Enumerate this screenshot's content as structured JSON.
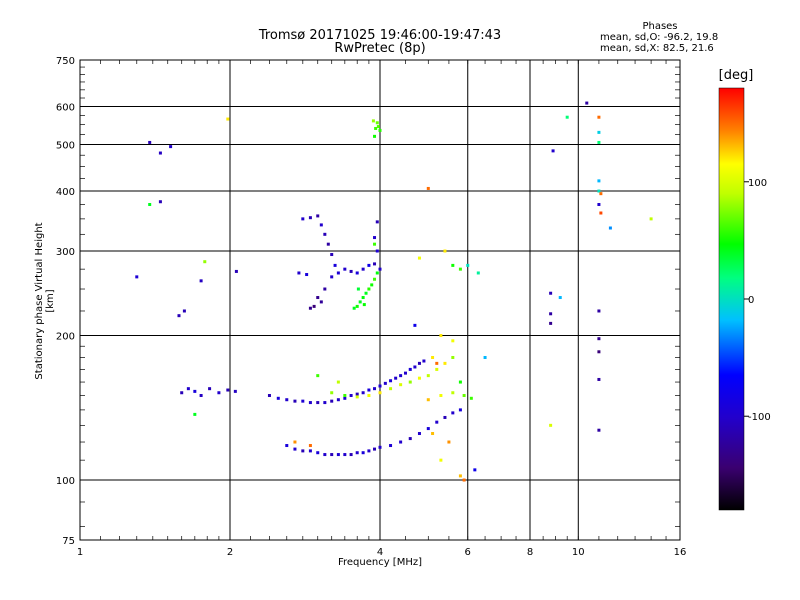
{
  "chart_data": {
    "type": "scatter",
    "title": "Tromsø 20171025 19:46:00-19:47:43",
    "subtitle": "RwPretec (8p)",
    "xlabel": "Frequency [MHz]",
    "ylabel": "Stationary phase Virtual Height [km]",
    "xscale": "log",
    "yscale": "log",
    "xlim": [
      1,
      16
    ],
    "ylim": [
      75,
      750
    ],
    "xticks": [
      "1",
      "2",
      "4",
      "6",
      "8",
      "10",
      "16"
    ],
    "yticks": [
      "75",
      "100",
      "200",
      "300",
      "400",
      "500",
      "600",
      "750"
    ],
    "grid": true,
    "stats": {
      "heading": "Phases",
      "line_o": "mean, sd,O: -96.2, 19.8",
      "line_x": "mean, sd,X: 82.5, 21.6"
    },
    "colorbar": {
      "label": "[deg]",
      "min": -180,
      "max": 180,
      "ticks": [
        "100",
        "0",
        "-100"
      ],
      "tick_values": [
        100,
        0,
        -100
      ]
    },
    "points": [
      [
        1.3,
        265,
        -95
      ],
      [
        1.38,
        505,
        -110
      ],
      [
        1.45,
        480,
        -105
      ],
      [
        1.52,
        495,
        -100
      ],
      [
        1.38,
        375,
        40
      ],
      [
        1.45,
        380,
        -110
      ],
      [
        1.58,
        220,
        -110
      ],
      [
        1.62,
        225,
        -110
      ],
      [
        1.75,
        260,
        -105
      ],
      [
        1.78,
        285,
        80
      ],
      [
        1.98,
        565,
        120
      ],
      [
        2.06,
        272,
        -110
      ],
      [
        1.6,
        152,
        -110
      ],
      [
        1.65,
        155,
        -100
      ],
      [
        1.7,
        153,
        -90
      ],
      [
        1.75,
        150,
        -105
      ],
      [
        1.82,
        155,
        -110
      ],
      [
        1.9,
        152,
        -100
      ],
      [
        1.98,
        154,
        -110
      ],
      [
        2.05,
        153,
        -105
      ],
      [
        1.7,
        137,
        40
      ],
      [
        2.4,
        150,
        -110
      ],
      [
        2.5,
        148,
        -90
      ],
      [
        2.6,
        147,
        -100
      ],
      [
        2.7,
        146,
        -110
      ],
      [
        2.8,
        146,
        -95
      ],
      [
        2.9,
        145,
        -100
      ],
      [
        3.0,
        145,
        -110
      ],
      [
        3.1,
        145,
        -100
      ],
      [
        3.2,
        146,
        -110
      ],
      [
        3.3,
        147,
        -100
      ],
      [
        3.4,
        148,
        -95
      ],
      [
        3.5,
        150,
        -100
      ],
      [
        3.6,
        151,
        -110
      ],
      [
        3.7,
        152,
        -100
      ],
      [
        3.8,
        154,
        -90
      ],
      [
        3.9,
        155,
        -100
      ],
      [
        4.0,
        157,
        -95
      ],
      [
        4.1,
        159,
        -100
      ],
      [
        4.2,
        161,
        -90
      ],
      [
        4.3,
        163,
        -100
      ],
      [
        4.4,
        165,
        -95
      ],
      [
        4.5,
        167,
        -100
      ],
      [
        4.6,
        170,
        -90
      ],
      [
        4.7,
        172,
        -100
      ],
      [
        4.8,
        175,
        -110
      ],
      [
        4.9,
        177,
        -100
      ],
      [
        3.2,
        152,
        80
      ],
      [
        3.4,
        150,
        60
      ],
      [
        3.6,
        149,
        100
      ],
      [
        3.8,
        150,
        110
      ],
      [
        4.0,
        152,
        120
      ],
      [
        4.2,
        155,
        90
      ],
      [
        4.4,
        158,
        100
      ],
      [
        4.6,
        160,
        80
      ],
      [
        4.8,
        163,
        110
      ],
      [
        5.0,
        165,
        90
      ],
      [
        5.2,
        170,
        100
      ],
      [
        5.4,
        175,
        120
      ],
      [
        5.6,
        180,
        80
      ],
      [
        5.0,
        147,
        130
      ],
      [
        5.3,
        150,
        110
      ],
      [
        5.6,
        152,
        90
      ],
      [
        5.9,
        150,
        70
      ],
      [
        6.1,
        148,
        60
      ],
      [
        5.8,
        160,
        50
      ],
      [
        3.0,
        165,
        60
      ],
      [
        3.3,
        160,
        90
      ],
      [
        2.6,
        118,
        -90
      ],
      [
        2.7,
        116,
        -100
      ],
      [
        2.8,
        115,
        -110
      ],
      [
        2.9,
        115,
        -100
      ],
      [
        3.0,
        114,
        -90
      ],
      [
        3.1,
        113,
        -100
      ],
      [
        3.2,
        113,
        -110
      ],
      [
        3.3,
        113,
        -95
      ],
      [
        3.4,
        113,
        -100
      ],
      [
        3.5,
        113,
        -110
      ],
      [
        3.6,
        114,
        -100
      ],
      [
        3.7,
        114,
        -90
      ],
      [
        3.8,
        115,
        -100
      ],
      [
        3.9,
        116,
        -110
      ],
      [
        4.0,
        117,
        -100
      ],
      [
        4.2,
        118,
        -95
      ],
      [
        4.4,
        120,
        -100
      ],
      [
        4.6,
        122,
        -110
      ],
      [
        4.8,
        125,
        -100
      ],
      [
        5.0,
        128,
        -90
      ],
      [
        5.2,
        132,
        -100
      ],
      [
        5.4,
        135,
        -110
      ],
      [
        5.6,
        138,
        -100
      ],
      [
        5.8,
        140,
        -90
      ],
      [
        2.7,
        120,
        140
      ],
      [
        2.9,
        118,
        150
      ],
      [
        5.1,
        125,
        130
      ],
      [
        5.5,
        120,
        140
      ],
      [
        5.3,
        110,
        110
      ],
      [
        5.8,
        102,
        130
      ],
      [
        5.9,
        100,
        150
      ],
      [
        6.2,
        105,
        -80
      ],
      [
        2.8,
        350,
        -100
      ],
      [
        2.9,
        352,
        -110
      ],
      [
        3.0,
        355,
        -120
      ],
      [
        3.05,
        340,
        -100
      ],
      [
        3.1,
        325,
        -110
      ],
      [
        3.15,
        310,
        -120
      ],
      [
        3.2,
        295,
        -110
      ],
      [
        3.25,
        280,
        -90
      ],
      [
        3.2,
        265,
        -100
      ],
      [
        3.1,
        250,
        -120
      ],
      [
        3.0,
        240,
        -130
      ],
      [
        2.95,
        230,
        -140
      ],
      [
        2.9,
        228,
        -130
      ],
      [
        3.05,
        235,
        -125
      ],
      [
        2.75,
        270,
        -100
      ],
      [
        2.85,
        268,
        -90
      ],
      [
        3.3,
        270,
        -95
      ],
      [
        3.4,
        275,
        -100
      ],
      [
        3.5,
        272,
        -110
      ],
      [
        3.6,
        270,
        -90
      ],
      [
        3.7,
        275,
        -100
      ],
      [
        3.8,
        280,
        -80
      ],
      [
        3.9,
        282,
        -110
      ],
      [
        4.0,
        275,
        -100
      ],
      [
        3.95,
        300,
        -95
      ],
      [
        3.9,
        320,
        -100
      ],
      [
        3.95,
        345,
        -110
      ],
      [
        3.6,
        230,
        50
      ],
      [
        3.65,
        235,
        40
      ],
      [
        3.7,
        240,
        45
      ],
      [
        3.75,
        245,
        40
      ],
      [
        3.8,
        250,
        55
      ],
      [
        3.85,
        255,
        50
      ],
      [
        3.9,
        262,
        60
      ],
      [
        3.95,
        270,
        45
      ],
      [
        3.55,
        228,
        40
      ],
      [
        3.62,
        250,
        35
      ],
      [
        3.72,
        232,
        48
      ],
      [
        3.9,
        310,
        60
      ],
      [
        3.9,
        520,
        50
      ],
      [
        3.92,
        540,
        60
      ],
      [
        3.95,
        555,
        70
      ],
      [
        3.97,
        545,
        65
      ],
      [
        3.88,
        560,
        80
      ],
      [
        4.0,
        535,
        55
      ],
      [
        5.0,
        405,
        150
      ],
      [
        5.4,
        300,
        120
      ],
      [
        5.6,
        280,
        50
      ],
      [
        5.8,
        275,
        60
      ],
      [
        4.8,
        290,
        110
      ],
      [
        5.3,
        200,
        120
      ],
      [
        5.6,
        195,
        110
      ],
      [
        4.7,
        210,
        -80
      ],
      [
        6.3,
        270,
        10
      ],
      [
        6.0,
        280,
        0
      ],
      [
        8.9,
        485,
        -100
      ],
      [
        10.4,
        610,
        -120
      ],
      [
        9.5,
        570,
        20
      ],
      [
        11.0,
        570,
        150
      ],
      [
        11.0,
        530,
        -10
      ],
      [
        11.0,
        505,
        20
      ],
      [
        11.0,
        420,
        -20
      ],
      [
        11.0,
        400,
        0
      ],
      [
        11.1,
        395,
        150
      ],
      [
        11.1,
        360,
        160
      ],
      [
        11.6,
        335,
        -30
      ],
      [
        14.0,
        350,
        90
      ],
      [
        11.0,
        375,
        -100
      ],
      [
        8.8,
        245,
        -110
      ],
      [
        9.2,
        240,
        -20
      ],
      [
        8.8,
        222,
        -120
      ],
      [
        8.8,
        212,
        -130
      ],
      [
        11.0,
        225,
        -120
      ],
      [
        11.0,
        197,
        -130
      ],
      [
        11.0,
        185,
        -140
      ],
      [
        11.0,
        162,
        -120
      ],
      [
        11.0,
        127,
        -120
      ],
      [
        8.8,
        130,
        100
      ],
      [
        6.5,
        180,
        -20
      ],
      [
        5.1,
        180,
        120
      ],
      [
        5.2,
        175,
        150
      ]
    ]
  }
}
